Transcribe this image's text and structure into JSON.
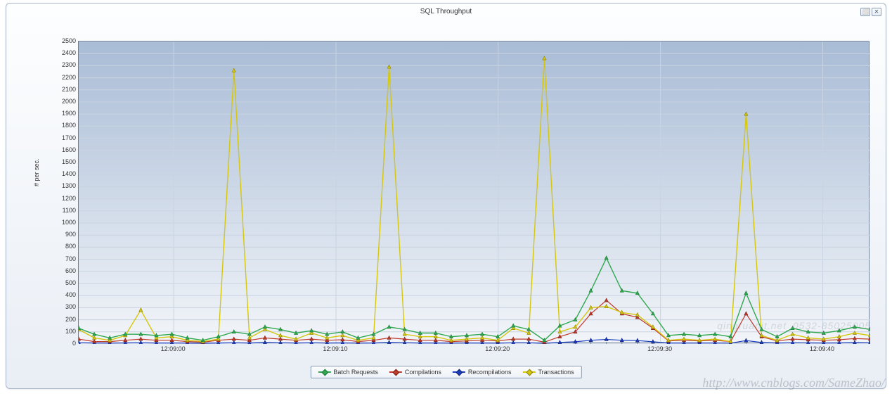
{
  "chart": {
    "type": "line",
    "title": "SQL Throughput",
    "ylabel": "# per sec.",
    "ylim": [
      0,
      2500
    ],
    "ytick_step": 100,
    "background_gradient": [
      "#a9bcd6",
      "#f2f5f9"
    ],
    "panel_gradient": [
      "#fdfeff",
      "#e9eef5"
    ],
    "border_color": "#6f7f96",
    "panel_border_color": "#a9b7c9",
    "grid_color": "#c9d3e1",
    "x_ticks": [
      {
        "label": "12:09:00",
        "pos": 0.12
      },
      {
        "label": "12:09:10",
        "pos": 0.325
      },
      {
        "label": "12:09:20",
        "pos": 0.53
      },
      {
        "label": "12:09:30",
        "pos": 0.735
      },
      {
        "label": "12:09:40",
        "pos": 0.94
      }
    ],
    "x_subticks_per_segment": 9,
    "series": [
      {
        "name": "Batch Requests",
        "color": "#2fa84f",
        "marker_border": "#1e7a36",
        "line_width": 1.4,
        "values": [
          130,
          80,
          50,
          80,
          80,
          70,
          80,
          50,
          30,
          60,
          100,
          80,
          140,
          120,
          90,
          110,
          80,
          100,
          50,
          80,
          140,
          120,
          90,
          90,
          60,
          70,
          80,
          60,
          150,
          120,
          30,
          150,
          200,
          440,
          710,
          440,
          420,
          250,
          70,
          80,
          70,
          80,
          60,
          420,
          120,
          60,
          130,
          100,
          90,
          110,
          140,
          120
        ]
      },
      {
        "name": "Compilations",
        "color": "#c0392b",
        "marker_border": "#7a1f15",
        "line_width": 1.2,
        "values": [
          40,
          20,
          20,
          30,
          40,
          30,
          30,
          20,
          15,
          30,
          40,
          30,
          50,
          40,
          30,
          40,
          30,
          35,
          20,
          30,
          50,
          40,
          30,
          30,
          20,
          25,
          30,
          25,
          40,
          40,
          15,
          60,
          100,
          250,
          360,
          250,
          220,
          130,
          25,
          30,
          25,
          30,
          20,
          250,
          60,
          25,
          40,
          35,
          30,
          35,
          45,
          40
        ]
      },
      {
        "name": "Recompilations",
        "color": "#1d3fbf",
        "marker_border": "#0c1f6e",
        "line_width": 1.2,
        "values": [
          10,
          8,
          7,
          9,
          10,
          8,
          8,
          7,
          6,
          8,
          10,
          8,
          12,
          10,
          8,
          10,
          8,
          9,
          7,
          8,
          12,
          10,
          8,
          8,
          7,
          8,
          8,
          7,
          10,
          10,
          6,
          12,
          18,
          30,
          38,
          30,
          28,
          18,
          8,
          8,
          8,
          8,
          7,
          28,
          12,
          8,
          10,
          9,
          8,
          9,
          11,
          10
        ]
      },
      {
        "name": "Transactions",
        "color": "#d6c70c",
        "marker_border": "#8a8106",
        "line_width": 1.4,
        "values": [
          120,
          50,
          30,
          70,
          280,
          50,
          60,
          30,
          20,
          40,
          2260,
          50,
          120,
          70,
          40,
          90,
          50,
          70,
          30,
          50,
          2290,
          80,
          60,
          60,
          30,
          40,
          50,
          30,
          130,
          90,
          2360,
          100,
          140,
          300,
          310,
          260,
          240,
          140,
          30,
          40,
          30,
          40,
          20,
          1900,
          70,
          30,
          80,
          50,
          40,
          60,
          90,
          70
        ]
      }
    ],
    "legend": {
      "items": [
        "Batch Requests",
        "Compilations",
        "Recompilations",
        "Transactions"
      ],
      "border_color": "#8a9bb3"
    }
  },
  "watermark": "http://www.cnblogs.com/SameZhao/",
  "watermark2": "qingruanit.net_0532-85025005",
  "window_controls": {
    "maximize": "⬜",
    "close": "✕"
  }
}
